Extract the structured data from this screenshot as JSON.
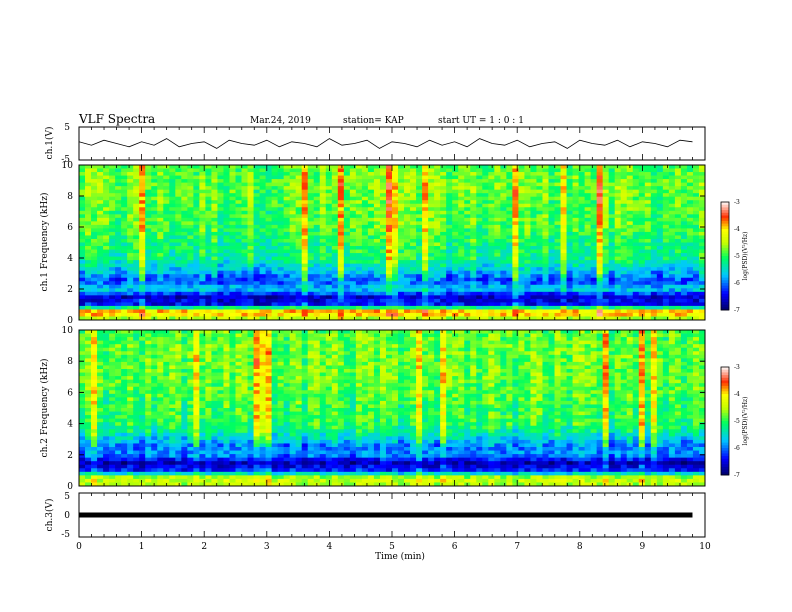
{
  "header": {
    "title": "VLF Spectra",
    "date": "Mar.24, 2019",
    "station": "station= KAP",
    "start": "start UT = 1 : 0 : 1"
  },
  "chart_data": [
    {
      "type": "line",
      "name": "ch1-waveform",
      "ylabel": "ch.1(V)",
      "ylim": [
        -5,
        5
      ],
      "yticks": [
        "5",
        "-5"
      ],
      "x": [
        0,
        0.2,
        0.4,
        0.6,
        0.8,
        1.0,
        1.2,
        1.4,
        1.6,
        1.8,
        2.0,
        2.2,
        2.4,
        2.6,
        2.8,
        3.0,
        3.2,
        3.4,
        3.6,
        3.8,
        4.0,
        4.2,
        4.4,
        4.6,
        4.8,
        5.0,
        5.2,
        5.4,
        5.6,
        5.8,
        6.0,
        6.2,
        6.4,
        6.6,
        6.8,
        7.0,
        7.2,
        7.4,
        7.6,
        7.8,
        8.0,
        8.2,
        8.4,
        8.6,
        8.8,
        9.0,
        9.2,
        9.4,
        9.6,
        9.8
      ],
      "y": [
        0.5,
        -0.5,
        1.0,
        0,
        -1.0,
        0.5,
        -0.5,
        1.5,
        -1.0,
        0,
        0.5,
        -1.5,
        1.0,
        0,
        -0.5,
        1.0,
        -1.0,
        0.5,
        0,
        -1.0,
        1.5,
        -0.5,
        0,
        1.0,
        -1.5,
        0.5,
        0,
        -1.0,
        1.0,
        -0.5,
        0.5,
        -1.0,
        1.5,
        0,
        -0.5,
        1.0,
        -1.0,
        0,
        0.5,
        -1.5,
        1.0,
        0,
        -0.5,
        1.0,
        -1.0,
        0.5,
        0,
        -1.0,
        1.0,
        0.5
      ]
    },
    {
      "type": "heatmap",
      "name": "ch1-spectrogram",
      "ylabel": "ch.1 Frequency (kHz)",
      "ylim": [
        0,
        10
      ],
      "yticks": [
        "0",
        "2",
        "4",
        "6",
        "8",
        "10"
      ],
      "colorbar": {
        "label": "log(PSD)(V²/Hz)",
        "range": [
          -7,
          -3
        ],
        "ticks": [
          "-3",
          "-4",
          "-5",
          "-6",
          "-7"
        ]
      },
      "profile_freq_khz": [
        0,
        0.5,
        1.0,
        1.5,
        2.0,
        2.5,
        3.0,
        4.0,
        5.0,
        6.0,
        7.0,
        8.0,
        9.0,
        10.0
      ],
      "profile_log_psd": [
        -4.8,
        -3.6,
        -6.4,
        -6.6,
        -5.6,
        -6.2,
        -5.8,
        -5.2,
        -5.1,
        -4.9,
        -4.9,
        -4.8,
        -4.8,
        -4.9
      ]
    },
    {
      "type": "heatmap",
      "name": "ch2-spectrogram",
      "ylabel": "ch.2 Frequency (kHz)",
      "ylim": [
        0,
        10
      ],
      "yticks": [
        "0",
        "2",
        "4",
        "6",
        "8",
        "10"
      ],
      "colorbar": {
        "label": "log(PSD)(V²/Hz)",
        "range": [
          -7,
          -3
        ],
        "ticks": [
          "-3",
          "-4",
          "-5",
          "-6",
          "-7"
        ]
      },
      "profile_freq_khz": [
        0,
        0.5,
        1.0,
        1.5,
        2.0,
        2.5,
        3.0,
        4.0,
        5.0,
        6.0,
        7.0,
        8.0,
        9.0,
        10.0
      ],
      "profile_log_psd": [
        -4.6,
        -4.4,
        -6.3,
        -6.7,
        -5.9,
        -6.0,
        -5.6,
        -5.0,
        -5.0,
        -4.9,
        -4.8,
        -4.8,
        -4.8,
        -4.9
      ]
    },
    {
      "type": "line",
      "name": "ch3-waveform",
      "ylabel": "ch.3(V)",
      "ylim": [
        -5,
        5
      ],
      "yticks": [
        "5",
        "0",
        "-5"
      ],
      "x": [
        0,
        9.8
      ],
      "y": [
        0,
        0
      ]
    }
  ],
  "xaxis": {
    "label": "Time (min)",
    "ticks": [
      "0",
      "1",
      "2",
      "3",
      "4",
      "5",
      "6",
      "7",
      "8",
      "9",
      "10"
    ],
    "range": [
      0,
      10
    ]
  }
}
